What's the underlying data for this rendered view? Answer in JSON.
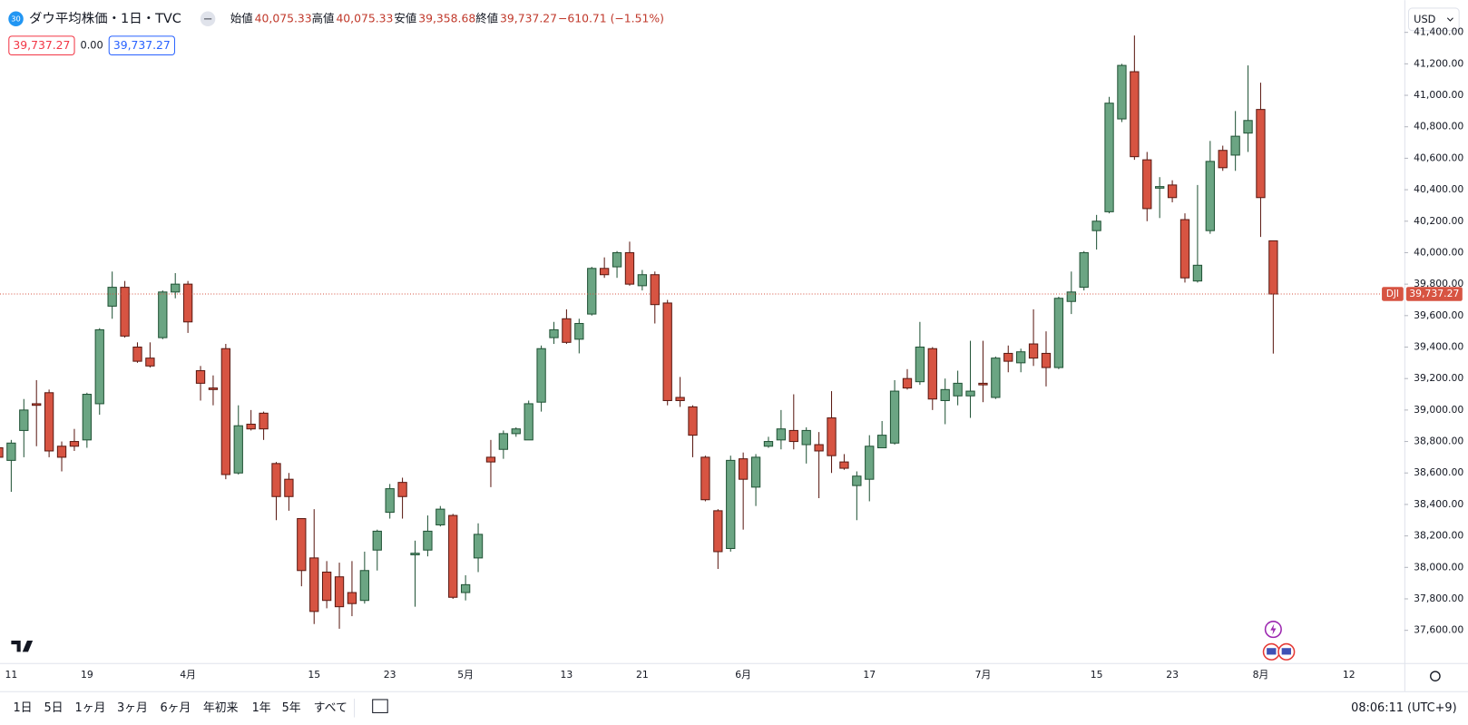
{
  "header": {
    "badge": "30",
    "symbol": "ダウ平均株価・1日・TVC",
    "open_label": "始値",
    "open": "40,075.33",
    "high_label": "高値",
    "high": "40,075.33",
    "low_label": "安値",
    "low": "39,358.68",
    "close_label": "終値",
    "close": "39,737.27",
    "change": "−610.71 (−1.51%)",
    "sell": "39,737.27",
    "spread": "0.00",
    "buy": "39,737.27",
    "currency": "USD"
  },
  "toolbar": {
    "ranges": [
      "1日",
      "5日",
      "1ヶ月",
      "3ヶ月",
      "6ヶ月",
      "年初来",
      "1年",
      "5年",
      "すべて"
    ],
    "time": "08:06:11 (UTC+9)"
  },
  "chart_data": {
    "type": "candlestick",
    "categories": [
      null,
      "11",
      null,
      null,
      null,
      null,
      null,
      "19",
      null,
      null,
      null,
      null,
      null,
      null,
      null,
      "4月",
      null,
      null,
      null,
      null,
      null,
      null,
      null,
      null,
      null,
      "15",
      null,
      null,
      null,
      null,
      null,
      "23",
      null,
      null,
      null,
      null,
      null,
      "5月",
      null,
      null,
      null,
      null,
      null,
      null,
      null,
      "13",
      null,
      null,
      null,
      null,
      null,
      "21",
      null,
      null,
      null,
      null,
      null,
      null,
      null,
      "6月",
      null,
      null,
      null,
      null,
      null,
      null,
      null,
      null,
      null,
      "17",
      null,
      null,
      null,
      null,
      null,
      null,
      null,
      null,
      "7月",
      null,
      null,
      null,
      null,
      null,
      null,
      null,
      null,
      "15",
      null,
      null,
      null,
      null,
      null,
      "23",
      null,
      null,
      null,
      null,
      null,
      null,
      "8月",
      null,
      null,
      null,
      null,
      null,
      null,
      "12"
    ],
    "open": [
      38760,
      38680,
      38870,
      39040,
      39110,
      38770,
      38800,
      38810,
      39040,
      39660,
      39780,
      39400,
      39330,
      39460,
      39750,
      39800,
      39250,
      39140,
      39390,
      38600,
      38910,
      38980,
      38660,
      38560,
      38310,
      38060,
      37970,
      37940,
      37840,
      37790,
      38110,
      38350,
      38540,
      38080,
      38110,
      38270,
      38330,
      37840,
      38060,
      38700,
      38750,
      38850,
      38810,
      39050,
      39460,
      39580,
      39450,
      39610,
      39900,
      39910,
      40000,
      39790,
      39860,
      39680,
      39080,
      39020,
      38700,
      38360,
      38120,
      38690,
      38510,
      38770,
      38810,
      38870,
      38780,
      38780,
      38950,
      38670,
      38520,
      38560,
      38760,
      38790,
      39200,
      39180,
      39390,
      39060,
      39090,
      39090,
      39170,
      39080,
      39360,
      39300,
      39420,
      39360,
      39270,
      39690,
      39780,
      40140,
      40260,
      40850,
      41150,
      40590,
      40410,
      40430,
      40210,
      39820,
      40140,
      40650,
      40620,
      40760,
      40910,
      40075.33,
      null,
      null,
      null,
      null,
      null,
      null
    ],
    "high": [
      38800,
      38810,
      39070,
      39190,
      39130,
      38800,
      38880,
      39110,
      39520,
      39880,
      39820,
      39430,
      39430,
      39760,
      39870,
      39820,
      39280,
      39220,
      39420,
      39030,
      39000,
      38990,
      38670,
      38600,
      38310,
      38370,
      38040,
      38030,
      38040,
      38100,
      38240,
      38530,
      38570,
      38170,
      38330,
      38390,
      38340,
      37950,
      38280,
      38810,
      38870,
      38890,
      39060,
      39410,
      39560,
      39640,
      39580,
      39910,
      39970,
      40010,
      40070,
      39890,
      39880,
      39700,
      39210,
      39030,
      38710,
      38370,
      38710,
      38730,
      38720,
      38830,
      39000,
      39100,
      38890,
      38860,
      39120,
      38720,
      38610,
      38840,
      38930,
      39190,
      39260,
      39560,
      39400,
      39200,
      39250,
      39440,
      39440,
      39340,
      39410,
      39390,
      39640,
      39500,
      39720,
      39880,
      40010,
      40240,
      40990,
      41200,
      41380,
      40640,
      40480,
      40460,
      40250,
      40430,
      40710,
      40680,
      40900,
      41190,
      41080,
      40075.33,
      null,
      null,
      null,
      null,
      null,
      null
    ],
    "low": [
      38650,
      38480,
      38700,
      38770,
      38700,
      38610,
      38740,
      38760,
      38970,
      39580,
      39460,
      39300,
      39270,
      39450,
      39710,
      39490,
      39060,
      39030,
      38560,
      38590,
      38870,
      38810,
      38300,
      38360,
      37880,
      37640,
      37740,
      37610,
      37690,
      37770,
      37980,
      38310,
      38310,
      37750,
      38070,
      38260,
      37800,
      37790,
      37970,
      38510,
      38690,
      38830,
      38810,
      38990,
      39420,
      39420,
      39360,
      39600,
      39840,
      39840,
      39790,
      39760,
      39550,
      39030,
      39020,
      38700,
      38420,
      37990,
      38100,
      38240,
      38390,
      38760,
      38750,
      38750,
      38660,
      38440,
      38600,
      38620,
      38300,
      38420,
      38760,
      38780,
      39130,
      39160,
      39000,
      38910,
      39030,
      38950,
      39050,
      39070,
      39240,
      39240,
      39280,
      39150,
      39260,
      39610,
      39760,
      40020,
      40250,
      40830,
      40590,
      40200,
      40220,
      40320,
      39810,
      39810,
      40120,
      40520,
      40520,
      40640,
      40100,
      39358.68,
      null,
      null,
      null,
      null,
      null,
      null
    ],
    "close": [
      38700,
      38790,
      39000,
      39030,
      38740,
      38700,
      38770,
      39100,
      39510,
      39780,
      39470,
      39310,
      39280,
      39750,
      39800,
      39560,
      39170,
      39130,
      38590,
      38900,
      38880,
      38880,
      38450,
      38450,
      37980,
      37720,
      37790,
      37750,
      37770,
      37980,
      38230,
      38500,
      38450,
      38090,
      38230,
      38370,
      37810,
      37890,
      38210,
      38670,
      38850,
      38880,
      39040,
      39390,
      39510,
      39430,
      39550,
      39900,
      39860,
      40000,
      39800,
      39860,
      39670,
      39060,
      39060,
      38840,
      38430,
      38100,
      38680,
      38560,
      38700,
      38800,
      38880,
      38800,
      38870,
      38740,
      38710,
      38630,
      38580,
      38770,
      38840,
      39120,
      39140,
      39400,
      39070,
      39130,
      39170,
      39120,
      39160,
      39330,
      39310,
      39370,
      39330,
      39270,
      39710,
      39750,
      40000,
      40200,
      40950,
      41190,
      40610,
      40280,
      40420,
      40350,
      39840,
      39920,
      40580,
      40540,
      40740,
      40840,
      40350,
      39737.27,
      null,
      null,
      null,
      null,
      null,
      null
    ],
    "colors": {
      "up": "#6ba583",
      "down": "#d75442",
      "up_border": "#225437",
      "down_border": "#5b1a13",
      "last_line": "#d75442"
    },
    "ylim": [
      37392,
      41575
    ],
    "yticks": [
      {
        "value": 37600,
        "label": "37,600.00"
      },
      {
        "value": 37800,
        "label": "37,800.00"
      },
      {
        "value": 38000,
        "label": "38,000.00"
      },
      {
        "value": 38200,
        "label": "38,200.00"
      },
      {
        "value": 38400,
        "label": "38,400.00"
      },
      {
        "value": 38600,
        "label": "38,600.00"
      },
      {
        "value": 38800,
        "label": "38,800.00"
      },
      {
        "value": 39000,
        "label": "39,000.00"
      },
      {
        "value": 39200,
        "label": "39,200.00"
      },
      {
        "value": 39400,
        "label": "39,400.00"
      },
      {
        "value": 39600,
        "label": "39,600.00"
      },
      {
        "value": 39800,
        "label": "39,800.00"
      },
      {
        "value": 40000,
        "label": "40,000.00"
      },
      {
        "value": 40200,
        "label": "40,200.00"
      },
      {
        "value": 40400,
        "label": "40,400.00"
      },
      {
        "value": 40600,
        "label": "40,600.00"
      },
      {
        "value": 40800,
        "label": "40,800.00"
      },
      {
        "value": 41000,
        "label": "41,000.00"
      },
      {
        "value": 41200,
        "label": "41,200.00"
      },
      {
        "value": 41400,
        "label": "41,400.00"
      }
    ],
    "grid": false,
    "price_tag": {
      "symbol": "DJI",
      "label": "39,737.27"
    }
  }
}
